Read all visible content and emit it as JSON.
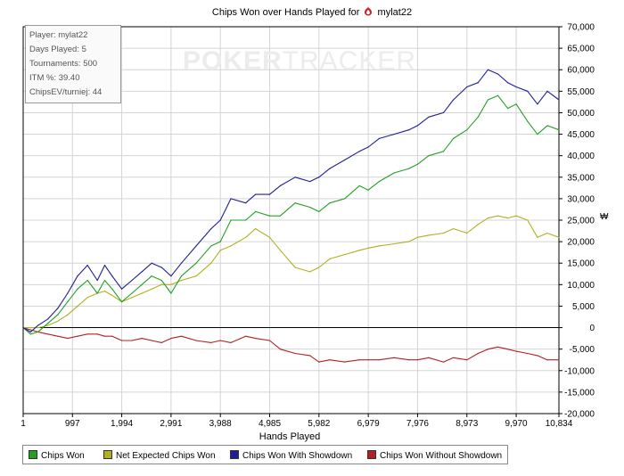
{
  "window": {
    "title_prefix": "Chips Won over Hands Played for",
    "player_name": "mylat22"
  },
  "watermark": {
    "part1": "POKER",
    "part2": "TRACKER"
  },
  "stats": [
    "Player: mylat22",
    "Days Played: 5",
    "Tournaments: 500",
    "ITM %: 39.40",
    "ChipsEV/turniej: 44"
  ],
  "axis": {
    "xlabel": "Hands Played",
    "unit_label": "₩"
  },
  "colors": {
    "chips_won": "#22a022",
    "net_expected": "#b0b020",
    "with_showdown": "#1e1e96",
    "without_showdown": "#b42020",
    "grid": "#d4d4d4",
    "axis": "#000000"
  },
  "chart_data": {
    "type": "line",
    "title": "Chips Won over Hands Played for mylat22",
    "xlabel": "Hands Played",
    "ylabel": "",
    "xlim": [
      1,
      10834
    ],
    "ylim": [
      -20000,
      70000
    ],
    "x_ticks": [
      1,
      997,
      1994,
      2991,
      3988,
      4985,
      5982,
      6979,
      7976,
      8973,
      9970,
      10834
    ],
    "x_tick_labels": [
      "1",
      "997",
      "1,994",
      "2,991",
      "3,988",
      "4,985",
      "5,982",
      "6,979",
      "7,976",
      "8,973",
      "9,970",
      "10,834"
    ],
    "y_ticks": [
      -20000,
      -15000,
      -10000,
      -5000,
      0,
      5000,
      10000,
      15000,
      20000,
      25000,
      30000,
      35000,
      40000,
      45000,
      50000,
      55000,
      60000,
      65000,
      70000
    ],
    "y_tick_labels": [
      "-20,000",
      "-15,000",
      "-10,000",
      "-5,000",
      "0",
      "5,000",
      "10,000",
      "15,000",
      "20,000",
      "25,000",
      "30,000",
      "35,000",
      "40,000",
      "45,000",
      "50,000",
      "55,000",
      "60,000",
      "65,000",
      "70,000"
    ],
    "grid": true,
    "legend_position": "bottom",
    "series": [
      {
        "name": "Chips Won",
        "color": "#22a022",
        "x": [
          1,
          150,
          300,
          500,
          700,
          900,
          1100,
          1300,
          1500,
          1650,
          1800,
          1994,
          2200,
          2400,
          2600,
          2800,
          2991,
          3200,
          3500,
          3800,
          3988,
          4200,
          4500,
          4700,
          4985,
          5200,
          5500,
          5800,
          5982,
          6200,
          6500,
          6800,
          6979,
          7200,
          7500,
          7800,
          7976,
          8200,
          8500,
          8700,
          8973,
          9200,
          9400,
          9600,
          9800,
          9970,
          10200,
          10400,
          10600,
          10834
        ],
        "y": [
          0,
          -1500,
          -1000,
          1000,
          3000,
          6000,
          9000,
          11000,
          8000,
          11000,
          9000,
          6000,
          8000,
          10000,
          12000,
          11000,
          8000,
          12000,
          15000,
          19000,
          20000,
          25000,
          25000,
          27000,
          26000,
          26000,
          29000,
          28000,
          27000,
          29000,
          30000,
          33000,
          32000,
          34000,
          36000,
          37000,
          38000,
          40000,
          41000,
          44000,
          46000,
          49000,
          53000,
          54000,
          51000,
          52000,
          48000,
          45000,
          47000,
          46000
        ]
      },
      {
        "name": "Net Expected Chips Won",
        "color": "#b0b020",
        "x": [
          1,
          150,
          300,
          500,
          700,
          900,
          1100,
          1300,
          1500,
          1650,
          1800,
          1994,
          2200,
          2400,
          2600,
          2800,
          2991,
          3200,
          3500,
          3800,
          3988,
          4200,
          4500,
          4700,
          4985,
          5200,
          5500,
          5800,
          5982,
          6200,
          6500,
          6800,
          6979,
          7200,
          7500,
          7800,
          7976,
          8200,
          8500,
          8700,
          8973,
          9200,
          9400,
          9600,
          9800,
          9970,
          10200,
          10400,
          10600,
          10834
        ],
        "y": [
          0,
          0,
          0,
          500,
          1500,
          3000,
          5000,
          7000,
          8000,
          8500,
          7500,
          6000,
          7000,
          8000,
          9000,
          10000,
          10000,
          11000,
          12000,
          15000,
          18000,
          19000,
          21000,
          23000,
          21000,
          18000,
          14000,
          13000,
          14000,
          16000,
          17000,
          18000,
          18500,
          19000,
          19500,
          20000,
          21000,
          21500,
          22000,
          23000,
          22000,
          24000,
          25500,
          26000,
          25500,
          26000,
          25000,
          21000,
          22000,
          21000
        ]
      },
      {
        "name": "Chips Won With Showdown",
        "color": "#1e1e96",
        "x": [
          1,
          150,
          300,
          500,
          700,
          900,
          1100,
          1300,
          1500,
          1650,
          1800,
          1994,
          2200,
          2400,
          2600,
          2800,
          2991,
          3200,
          3500,
          3800,
          3988,
          4200,
          4500,
          4700,
          4985,
          5200,
          5500,
          5800,
          5982,
          6200,
          6500,
          6800,
          6979,
          7200,
          7500,
          7800,
          7976,
          8200,
          8500,
          8700,
          8973,
          9200,
          9400,
          9600,
          9800,
          9970,
          10200,
          10400,
          10600,
          10834
        ],
        "y": [
          0,
          -1000,
          500,
          2000,
          4500,
          8000,
          12000,
          14500,
          11000,
          14500,
          12000,
          9000,
          11000,
          13000,
          15000,
          14000,
          12000,
          15000,
          19000,
          23000,
          25000,
          30000,
          29000,
          31000,
          31000,
          33000,
          35000,
          34000,
          35000,
          37000,
          39000,
          41000,
          42000,
          44000,
          45000,
          46000,
          47000,
          49000,
          50000,
          53000,
          56000,
          57000,
          60000,
          59000,
          57000,
          56000,
          55000,
          52000,
          55000,
          53000
        ]
      },
      {
        "name": "Chips Won Without Showdown",
        "color": "#b42020",
        "x": [
          1,
          150,
          300,
          500,
          700,
          900,
          1100,
          1300,
          1500,
          1650,
          1800,
          1994,
          2200,
          2400,
          2600,
          2800,
          2991,
          3200,
          3500,
          3800,
          3988,
          4200,
          4500,
          4700,
          4985,
          5200,
          5500,
          5800,
          5982,
          6200,
          6500,
          6800,
          6979,
          7200,
          7500,
          7800,
          7976,
          8200,
          8500,
          8700,
          8973,
          9200,
          9400,
          9600,
          9800,
          9970,
          10200,
          10400,
          10600,
          10834
        ],
        "y": [
          0,
          -500,
          -1000,
          -1500,
          -2000,
          -2500,
          -2000,
          -1500,
          -1500,
          -2000,
          -2000,
          -3000,
          -3000,
          -2500,
          -3000,
          -3500,
          -2500,
          -2000,
          -3000,
          -3500,
          -3000,
          -3500,
          -2000,
          -2500,
          -3000,
          -5000,
          -6000,
          -6500,
          -8000,
          -7500,
          -8000,
          -7500,
          -7500,
          -7500,
          -7000,
          -7500,
          -7500,
          -7000,
          -8000,
          -7000,
          -7500,
          -6000,
          -5000,
          -4500,
          -5000,
          -5500,
          -6000,
          -6500,
          -7500,
          -7500
        ]
      }
    ]
  }
}
